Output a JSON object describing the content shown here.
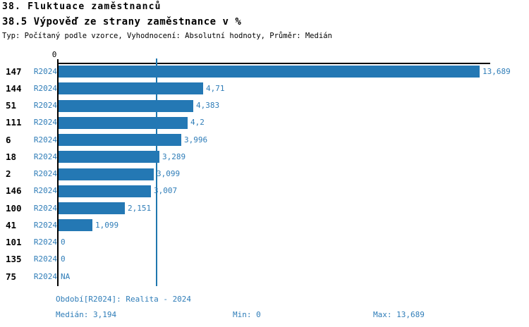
{
  "title": "38. Fluktuace zaměstnanců",
  "subtitle": "38.5 Výpověď ze strany zaměstnance v %",
  "meta": "Typ: Počítaný podle vzorce, Vyhodnocení: Absolutní hodnoty, Průměr: Medián",
  "colors": {
    "bar": "#2478b4",
    "blue_text": "#2f7db8",
    "median_line": "#1f77ae",
    "axis": "#000000"
  },
  "chart_data": {
    "type": "bar",
    "orientation": "horizontal",
    "title": "38.5 Výpověď ze strany zaměstnance v %",
    "categories": [
      "147",
      "144",
      "51",
      "111",
      "6",
      "18",
      "2",
      "146",
      "100",
      "41",
      "101",
      "135",
      "75"
    ],
    "series_name": "R2024",
    "values": [
      13.689,
      4.71,
      4.383,
      4.2,
      3.996,
      3.289,
      3.099,
      3.007,
      2.151,
      1.099,
      0,
      0,
      null
    ],
    "value_labels": [
      "13,689",
      "4,71",
      "4,383",
      "4,2",
      "3,996",
      "3,289",
      "3,099",
      "3,007",
      "2,151",
      "1,099",
      "0",
      "0",
      "NA"
    ],
    "axis_tick_label": "0",
    "axis_position": "top",
    "xlim": [
      0,
      13.689
    ],
    "median_value": 3.194,
    "grid": false,
    "legend": "none"
  },
  "footer": {
    "period": "Období[R2024]: Realita - 2024",
    "median": "Medián: 3,194",
    "min": "Min: 0",
    "max": "Max: 13,689"
  }
}
